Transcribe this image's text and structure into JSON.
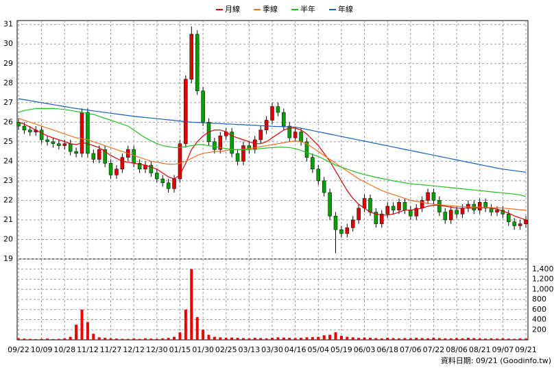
{
  "chart_data": [
    {
      "type": "candlestick",
      "categories": [
        "09/22",
        null,
        null,
        null,
        "10/09",
        null,
        null,
        null,
        "10/28",
        null,
        null,
        null,
        "11/12",
        null,
        null,
        null,
        "11/27",
        null,
        null,
        null,
        "12/12",
        null,
        null,
        null,
        "12/30",
        null,
        null,
        null,
        "01/15",
        null,
        null,
        null,
        "01/30",
        null,
        null,
        null,
        "02/25",
        null,
        null,
        null,
        "03/13",
        null,
        null,
        null,
        "03/30",
        null,
        null,
        null,
        "04/16",
        null,
        null,
        null,
        "05/04",
        null,
        null,
        null,
        "05/19",
        null,
        null,
        null,
        "06/03",
        null,
        null,
        null,
        "06/18",
        null,
        null,
        null,
        "07/06",
        null,
        null,
        null,
        "07/22",
        null,
        null,
        null,
        "08/06",
        null,
        null,
        null,
        "08/21",
        null,
        null,
        null,
        "09/07",
        null,
        null,
        null,
        "09/21"
      ],
      "open": [
        26.0,
        25.8,
        25.6,
        25.5,
        25.6,
        25.1,
        25.0,
        24.9,
        24.8,
        24.9,
        24.5,
        24.4,
        26.5,
        24.4,
        24.1,
        24.6,
        23.9,
        23.3,
        23.6,
        24.2,
        24.6,
        23.9,
        23.6,
        23.8,
        23.4,
        23.1,
        22.9,
        22.6,
        23.1,
        24.9,
        28.2,
        30.5,
        27.6,
        26.0,
        25.0,
        24.6,
        25.3,
        25.5,
        24.4,
        24.0,
        24.8,
        24.6,
        25.1,
        25.6,
        26.1,
        26.8,
        26.5,
        25.8,
        25.2,
        25.5,
        25.0,
        24.2,
        23.6,
        23.0,
        22.4,
        21.2,
        20.5,
        20.3,
        20.6,
        21.0,
        21.6,
        22.1,
        21.4,
        20.8,
        21.3,
        21.7,
        21.5,
        21.9,
        21.5,
        21.2,
        21.6,
        22.0,
        22.4,
        22.0,
        21.4,
        21.0,
        21.5,
        21.3,
        21.6,
        21.8,
        21.5,
        21.9,
        21.6,
        21.4,
        21.5,
        21.3,
        20.9,
        20.7,
        20.8
      ],
      "high": [
        26.2,
        26.0,
        25.8,
        25.8,
        25.8,
        25.3,
        25.2,
        25.1,
        25.1,
        25.1,
        24.7,
        26.7,
        26.7,
        24.6,
        24.8,
        24.8,
        24.1,
        23.8,
        24.4,
        24.8,
        24.8,
        24.1,
        24.0,
        24.0,
        23.6,
        23.3,
        23.1,
        23.3,
        25.1,
        28.4,
        30.9,
        30.7,
        27.8,
        26.2,
        25.2,
        25.5,
        25.7,
        25.7,
        24.6,
        25.0,
        25.0,
        25.3,
        25.8,
        26.3,
        27.0,
        27.0,
        26.7,
        26.0,
        25.7,
        25.7,
        25.2,
        24.4,
        23.8,
        23.2,
        22.6,
        21.4,
        20.7,
        20.8,
        21.2,
        21.8,
        22.3,
        22.3,
        21.6,
        21.5,
        21.9,
        21.9,
        22.1,
        22.1,
        21.7,
        21.8,
        22.2,
        22.6,
        22.6,
        22.2,
        21.6,
        21.7,
        21.7,
        21.8,
        22.0,
        22.0,
        22.1,
        22.1,
        21.8,
        21.7,
        21.7,
        21.5,
        21.1,
        21.0,
        21.2
      ],
      "low": [
        25.6,
        25.4,
        25.3,
        25.3,
        24.9,
        24.8,
        24.7,
        24.6,
        24.6,
        24.3,
        24.2,
        24.2,
        24.2,
        23.9,
        23.9,
        23.7,
        23.1,
        23.1,
        23.4,
        24.0,
        23.7,
        23.4,
        23.4,
        23.2,
        22.9,
        22.7,
        22.4,
        22.4,
        22.9,
        24.7,
        28.0,
        27.4,
        25.8,
        24.8,
        24.4,
        24.4,
        25.1,
        24.2,
        23.8,
        23.8,
        24.4,
        24.4,
        24.9,
        25.4,
        25.9,
        26.3,
        25.6,
        25.0,
        25.0,
        24.8,
        24.0,
        23.4,
        22.8,
        22.2,
        21.0,
        19.3,
        20.1,
        20.1,
        20.4,
        20.8,
        21.4,
        21.2,
        20.6,
        20.6,
        21.1,
        21.3,
        21.3,
        21.3,
        21.0,
        21.0,
        21.4,
        21.8,
        21.8,
        21.2,
        20.8,
        20.8,
        21.1,
        21.1,
        21.4,
        21.3,
        21.3,
        21.4,
        21.2,
        21.2,
        21.1,
        20.7,
        20.5,
        20.5,
        20.6
      ],
      "close": [
        25.8,
        25.6,
        25.5,
        25.6,
        25.1,
        25.0,
        24.9,
        24.8,
        24.9,
        24.5,
        24.4,
        26.5,
        24.4,
        24.1,
        24.6,
        23.9,
        23.3,
        23.6,
        24.2,
        24.6,
        23.9,
        23.6,
        23.8,
        23.4,
        23.1,
        22.9,
        22.6,
        23.1,
        24.9,
        28.2,
        30.5,
        27.6,
        26.0,
        25.0,
        24.6,
        25.3,
        25.5,
        24.4,
        24.0,
        24.8,
        24.6,
        25.1,
        25.6,
        26.1,
        26.8,
        26.5,
        25.8,
        25.2,
        25.5,
        25.0,
        24.2,
        23.6,
        23.0,
        22.4,
        21.2,
        20.5,
        20.3,
        20.6,
        21.0,
        21.6,
        22.1,
        21.4,
        20.8,
        21.3,
        21.7,
        21.5,
        21.9,
        21.5,
        21.2,
        21.6,
        22.0,
        22.4,
        22.0,
        21.4,
        21.0,
        21.5,
        21.3,
        21.6,
        21.8,
        21.5,
        21.9,
        21.6,
        21.4,
        21.5,
        21.3,
        20.9,
        20.7,
        20.8,
        21.0
      ],
      "up_color": "#e00000",
      "down_color": "#00a000",
      "series": [
        {
          "name": "月線",
          "color": "#e00000",
          "values": [
            26.0,
            25.9,
            25.75,
            25.6,
            25.45,
            25.3,
            25.2,
            25.1,
            25.0,
            24.9,
            24.85,
            24.95,
            24.9,
            24.8,
            24.7,
            24.5,
            24.3,
            24.15,
            24.0,
            23.95,
            23.9,
            23.85,
            23.8,
            23.7,
            23.6,
            23.4,
            23.2,
            23.1,
            23.3,
            23.9,
            24.6,
            25.0,
            25.3,
            25.5,
            25.6,
            25.6,
            25.5,
            25.3,
            25.2,
            25.1,
            25.0,
            24.9,
            24.9,
            25.0,
            25.2,
            25.4,
            25.6,
            25.7,
            25.7,
            25.6,
            25.4,
            25.1,
            24.8,
            24.4,
            24.0,
            23.5,
            23.0,
            22.5,
            22.1,
            21.8,
            21.6,
            21.4,
            21.3,
            21.25,
            21.25,
            21.3,
            21.4,
            21.5,
            21.5,
            21.55,
            21.6,
            21.7,
            21.75,
            21.75,
            21.7,
            21.65,
            21.6,
            21.6,
            21.6,
            21.6,
            21.62,
            21.63,
            21.6,
            21.55,
            21.45,
            21.35,
            21.2,
            21.1,
            21.0
          ]
        },
        {
          "name": "季線",
          "color": "#f07020",
          "values": [
            26.2,
            26.1,
            26.0,
            25.9,
            25.8,
            25.7,
            25.6,
            25.5,
            25.4,
            25.3,
            25.2,
            25.15,
            25.1,
            25.0,
            24.9,
            24.8,
            24.7,
            24.6,
            24.5,
            24.4,
            24.3,
            24.2,
            24.1,
            24.0,
            23.95,
            23.9,
            23.85,
            23.85,
            23.9,
            24.0,
            24.15,
            24.3,
            24.4,
            24.45,
            24.5,
            24.5,
            24.55,
            24.6,
            24.6,
            24.6,
            24.65,
            24.7,
            24.75,
            24.8,
            24.85,
            24.9,
            24.95,
            25.0,
            25.05,
            25.0,
            24.9,
            24.7,
            24.5,
            24.3,
            24.1,
            23.9,
            23.7,
            23.5,
            23.3,
            23.1,
            22.95,
            22.8,
            22.65,
            22.5,
            22.4,
            22.3,
            22.2,
            22.1,
            22.0,
            21.95,
            21.9,
            21.85,
            21.8,
            21.78,
            21.75,
            21.72,
            21.7,
            21.68,
            21.66,
            21.65,
            21.65,
            21.64,
            21.63,
            21.62,
            21.6,
            21.58,
            21.55,
            21.52,
            21.5
          ]
        },
        {
          "name": "半年",
          "color": "#20c020",
          "values": [
            26.5,
            26.6,
            26.65,
            26.7,
            26.7,
            26.7,
            26.7,
            26.68,
            26.65,
            26.6,
            26.55,
            26.5,
            26.45,
            26.4,
            26.3,
            26.2,
            26.1,
            26.0,
            25.9,
            25.8,
            25.6,
            25.4,
            25.2,
            25.05,
            24.9,
            24.8,
            24.75,
            24.7,
            24.7,
            24.75,
            24.8,
            24.85,
            24.85,
            24.8,
            24.75,
            24.7,
            24.65,
            24.6,
            24.6,
            24.6,
            24.6,
            24.62,
            24.65,
            24.68,
            24.7,
            24.72,
            24.72,
            24.7,
            24.65,
            24.55,
            24.45,
            24.35,
            24.25,
            24.1,
            23.95,
            23.8,
            23.7,
            23.6,
            23.5,
            23.4,
            23.32,
            23.25,
            23.18,
            23.12,
            23.06,
            23.0,
            22.95,
            22.9,
            22.85,
            22.82,
            22.8,
            22.77,
            22.74,
            22.71,
            22.68,
            22.65,
            22.62,
            22.59,
            22.56,
            22.53,
            22.5,
            22.47,
            22.44,
            22.41,
            22.38,
            22.35,
            22.32,
            22.28,
            22.2
          ]
        },
        {
          "name": "年線",
          "color": "#1060c0",
          "values": [
            27.2,
            27.15,
            27.1,
            27.05,
            27.0,
            26.95,
            26.9,
            26.85,
            26.8,
            26.75,
            26.7,
            26.66,
            26.62,
            26.58,
            26.54,
            26.5,
            26.46,
            26.42,
            26.38,
            26.34,
            26.3,
            26.27,
            26.24,
            26.21,
            26.18,
            26.15,
            26.12,
            26.09,
            26.06,
            26.03,
            26.0,
            25.99,
            25.97,
            25.96,
            25.94,
            25.93,
            25.91,
            25.9,
            25.88,
            25.87,
            25.85,
            25.84,
            25.82,
            25.81,
            25.79,
            25.78,
            25.77,
            25.76,
            25.75,
            25.69,
            25.63,
            25.57,
            25.51,
            25.45,
            25.39,
            25.33,
            25.27,
            25.21,
            25.15,
            25.09,
            25.03,
            24.97,
            24.91,
            24.85,
            24.79,
            24.73,
            24.67,
            24.61,
            24.55,
            24.49,
            24.43,
            24.37,
            24.31,
            24.25,
            24.19,
            24.13,
            24.07,
            24.01,
            23.95,
            23.89,
            23.83,
            23.77,
            23.71,
            23.65,
            23.6,
            23.56,
            23.52,
            23.48,
            23.44
          ]
        }
      ],
      "ylim": [
        19,
        31.2
      ],
      "yticks": [
        19,
        20,
        21,
        22,
        23,
        24,
        25,
        26,
        27,
        28,
        29,
        30,
        31
      ],
      "grid": true,
      "legend": "top"
    },
    {
      "type": "bar",
      "color": "#ee0000",
      "values": [
        30,
        25,
        20,
        15,
        20,
        25,
        15,
        20,
        30,
        60,
        300,
        600,
        350,
        120,
        50,
        40,
        30,
        25,
        20,
        20,
        25,
        20,
        30,
        25,
        20,
        30,
        40,
        60,
        150,
        600,
        1400,
        450,
        200,
        100,
        60,
        50,
        40,
        45,
        40,
        35,
        30,
        40,
        35,
        30,
        40,
        50,
        45,
        40,
        35,
        40,
        50,
        55,
        60,
        90,
        100,
        150,
        80,
        60,
        50,
        40,
        45,
        40,
        35,
        30,
        40,
        35,
        30,
        35,
        30,
        40,
        35,
        30,
        40,
        35,
        30,
        30,
        35,
        30,
        40,
        35,
        30,
        25,
        30,
        25,
        30,
        25,
        20,
        30,
        25
      ],
      "ylim": [
        0,
        1600
      ],
      "yticks": [
        200,
        400,
        600,
        800,
        {
          "value": 1000,
          "label": "1,000"
        },
        {
          "value": 1200,
          "label": "1,200"
        },
        {
          "value": 1400,
          "label": "1,400"
        }
      ],
      "grid": true
    }
  ],
  "footer": "資料日期: 09/21 (Goodinfo.tw)"
}
